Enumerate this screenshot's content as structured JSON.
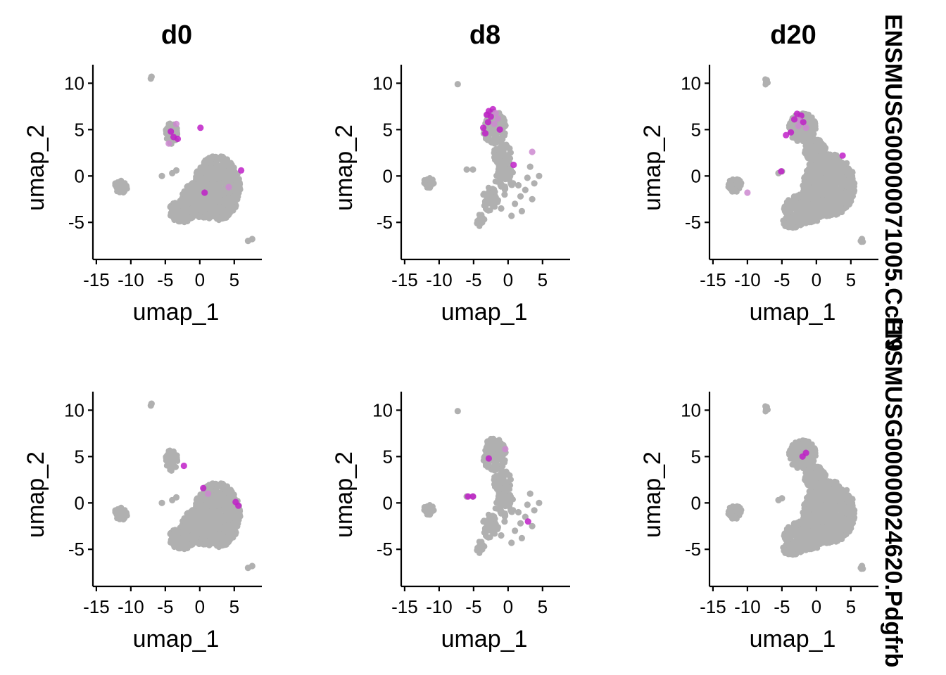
{
  "colors": {
    "low": "#B0B0B0",
    "high": "#C020C8",
    "mid": "#CC88D0"
  },
  "chart_data": {
    "type": "scatter",
    "kind": "UMAP feature plot split by timepoint",
    "columns": [
      "d0",
      "d8",
      "d20"
    ],
    "rows": [
      "ENSMUSG00000071005.Ccl19",
      "ENSMUSG00000024620.Pdgfrb"
    ],
    "xlabel": "umap_1",
    "ylabel": "umap_2",
    "xlim": [
      -15.5,
      9
    ],
    "ylim": [
      -9,
      12
    ],
    "xticks": [
      -15,
      -10,
      -5,
      0,
      5
    ],
    "yticks": [
      -5,
      0,
      5,
      10
    ],
    "xtick_labels": [
      "-15",
      "-10",
      "-5",
      "0",
      "5"
    ],
    "ytick_labels": [
      "-5",
      "0",
      "5",
      "10"
    ],
    "grid": false,
    "panels": [
      {
        "row": 0,
        "col": 0,
        "high_points": [
          [
            -4.2,
            4.8
          ],
          [
            -3.8,
            4.2
          ],
          [
            -3.4,
            5.6
          ],
          [
            0.1,
            5.2
          ],
          [
            -3.2,
            4.0
          ],
          [
            -4.5,
            3.5
          ],
          [
            6.0,
            0.6
          ],
          [
            0.7,
            -1.8
          ],
          [
            4.2,
            -1.2
          ]
        ]
      },
      {
        "row": 0,
        "col": 1,
        "high_points": [
          [
            -2.8,
            7.0
          ],
          [
            -2.2,
            7.2
          ],
          [
            -1.8,
            6.8
          ],
          [
            -2.5,
            6.4
          ],
          [
            -3.1,
            6.6
          ],
          [
            -1.5,
            6.2
          ],
          [
            -2.9,
            5.8
          ],
          [
            -3.6,
            5.2
          ],
          [
            -2.0,
            5.6
          ],
          [
            -1.2,
            5.0
          ],
          [
            -3.3,
            4.6
          ],
          [
            3.5,
            2.6
          ],
          [
            0.8,
            1.2
          ]
        ]
      },
      {
        "row": 0,
        "col": 2,
        "high_points": [
          [
            -2.8,
            6.7
          ],
          [
            -2.2,
            6.5
          ],
          [
            -2.5,
            6.0
          ],
          [
            -3.2,
            6.1
          ],
          [
            -1.9,
            5.8
          ],
          [
            -2.6,
            5.4
          ],
          [
            -4.4,
            4.4
          ],
          [
            -3.7,
            4.7
          ],
          [
            -1.5,
            5.2
          ],
          [
            -5.1,
            0.5
          ],
          [
            3.8,
            2.2
          ],
          [
            -10.0,
            -1.8
          ]
        ]
      },
      {
        "row": 1,
        "col": 0,
        "high_points": [
          [
            -2.3,
            4.0
          ],
          [
            0.5,
            1.6
          ],
          [
            1.2,
            1.0
          ],
          [
            5.2,
            0.1
          ],
          [
            5.6,
            -0.3
          ]
        ]
      },
      {
        "row": 1,
        "col": 1,
        "high_points": [
          [
            -5.8,
            0.7
          ],
          [
            -5.1,
            0.7
          ],
          [
            -0.4,
            5.8
          ],
          [
            -2.8,
            4.8
          ],
          [
            2.9,
            -2.0
          ]
        ]
      },
      {
        "row": 1,
        "col": 2,
        "high_points": [
          [
            -1.5,
            5.4
          ],
          [
            -2.0,
            5.0
          ]
        ]
      }
    ]
  }
}
